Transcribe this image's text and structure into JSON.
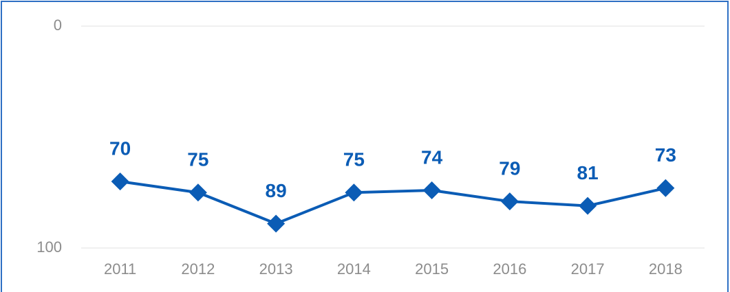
{
  "chart_data": {
    "type": "line",
    "categories": [
      "2011",
      "2012",
      "2013",
      "2014",
      "2015",
      "2016",
      "2017",
      "2018"
    ],
    "series": [
      {
        "color": "#0b5cb5",
        "values": [
          70,
          75,
          89,
          75,
          74,
          79,
          81,
          73
        ]
      }
    ],
    "ylim": [
      100,
      0
    ],
    "yticks": [
      0,
      100
    ],
    "grid": true
  }
}
